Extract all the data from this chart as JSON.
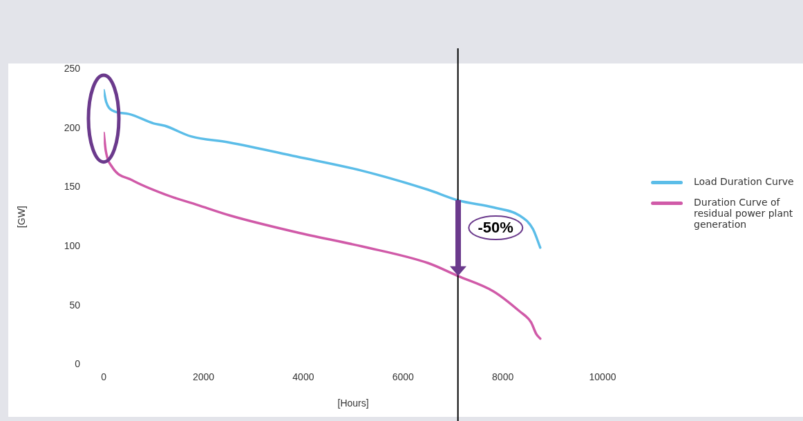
{
  "chart_data": {
    "type": "line",
    "xlabel": "[Hours]",
    "ylabel": "[GW]",
    "xlim": [
      0,
      10000
    ],
    "xticks": [
      0,
      2000,
      4000,
      6000,
      8000,
      10000
    ],
    "ylim": [
      0,
      250
    ],
    "yticks": [
      0,
      50,
      100,
      150,
      200,
      250
    ],
    "grid": false,
    "legend": "right",
    "marker": "none",
    "line_style": "solid",
    "series": [
      {
        "name": "Load Duration Curve",
        "color": "#5bbde8",
        "x": [
          0,
          50,
          171,
          500,
          1000,
          1225,
          1750,
          2500,
          3860,
          5178,
          6495,
          7100,
          7813,
          8340,
          8600,
          8750
        ],
        "values": [
          232,
          222,
          215,
          212,
          204,
          202,
          193,
          188,
          176,
          164,
          148,
          139,
          133,
          126,
          115,
          99
        ]
      },
      {
        "name": "Duration Curve of residual power plant generation",
        "color": "#d05aa8",
        "x": [
          0,
          40,
          171,
          567,
          1225,
          1884,
          2543,
          3860,
          5178,
          6495,
          7100,
          7813,
          8340,
          8564,
          8670,
          8750
        ],
        "values": [
          196,
          181,
          167,
          156,
          144,
          135,
          126,
          112,
          100,
          86,
          75,
          62,
          45,
          36,
          26,
          22
        ]
      }
    ],
    "ref_lines": [
      {
        "axis": "x",
        "value": 7100,
        "color": "#000000"
      }
    ],
    "annotations": [
      "-50%"
    ]
  }
}
